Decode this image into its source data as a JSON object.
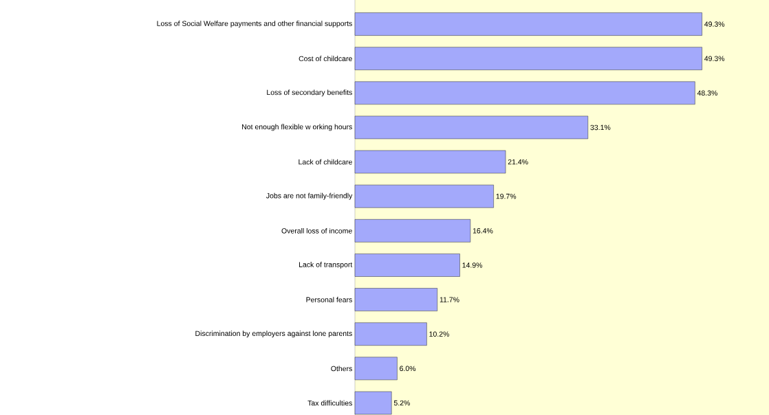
{
  "chart_data": {
    "type": "bar",
    "orientation": "horizontal",
    "categories": [
      "Loss of Social Welfare payments and other financial supports",
      "Cost of childcare",
      "Loss of secondary benefits",
      "Not enough flexible w orking hours",
      "Lack of childcare",
      "Jobs are not family-friendly",
      "Overall loss of income",
      "Lack of transport",
      "Personal fears",
      "Discrimination by employers against lone parents",
      "Others",
      "Tax difficulties"
    ],
    "values": [
      49.3,
      49.3,
      48.3,
      33.1,
      21.4,
      19.7,
      16.4,
      14.9,
      11.7,
      10.2,
      6.0,
      5.2
    ],
    "value_labels": [
      "49.3%",
      "49.3%",
      "48.3%",
      "33.1%",
      "21.4%",
      "19.7%",
      "16.4%",
      "14.9%",
      "11.7%",
      "10.2%",
      "6.0%",
      "5.2%"
    ],
    "color": "#a3a9fb"
  }
}
